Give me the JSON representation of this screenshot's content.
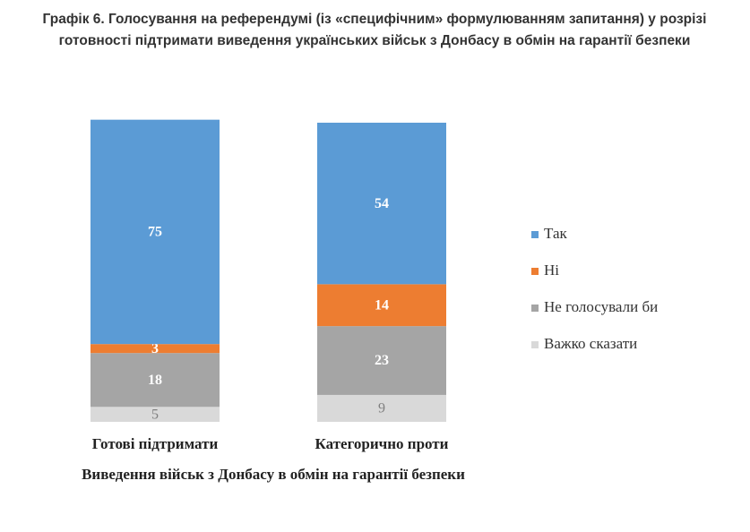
{
  "chart_data": {
    "type": "stacked_bar",
    "title": "Графік 6. Голосування на референдумі (із «специфічним» формулюванням запитання) у розрізі готовності підтримати виведення українських військ з Донбасу в обмін на гарантії безпеки",
    "x_label": "Виведення військ з Донбасу в обмін на гарантії безпеки",
    "categories": [
      "Готові підтримати",
      "Категорично проти"
    ],
    "series": [
      {
        "name": "Так",
        "color": "#5b9bd5",
        "values": [
          75,
          54
        ]
      },
      {
        "name": "Ні",
        "color": "#ed7d31",
        "values": [
          3,
          14
        ]
      },
      {
        "name": "Не голосували би",
        "color": "#a5a5a5",
        "values": [
          18,
          23
        ]
      },
      {
        "name": "Важко сказати",
        "color": "#d9d9d9",
        "values": [
          5,
          9
        ]
      }
    ],
    "ylim": [
      0,
      100
    ],
    "legend": "right"
  }
}
